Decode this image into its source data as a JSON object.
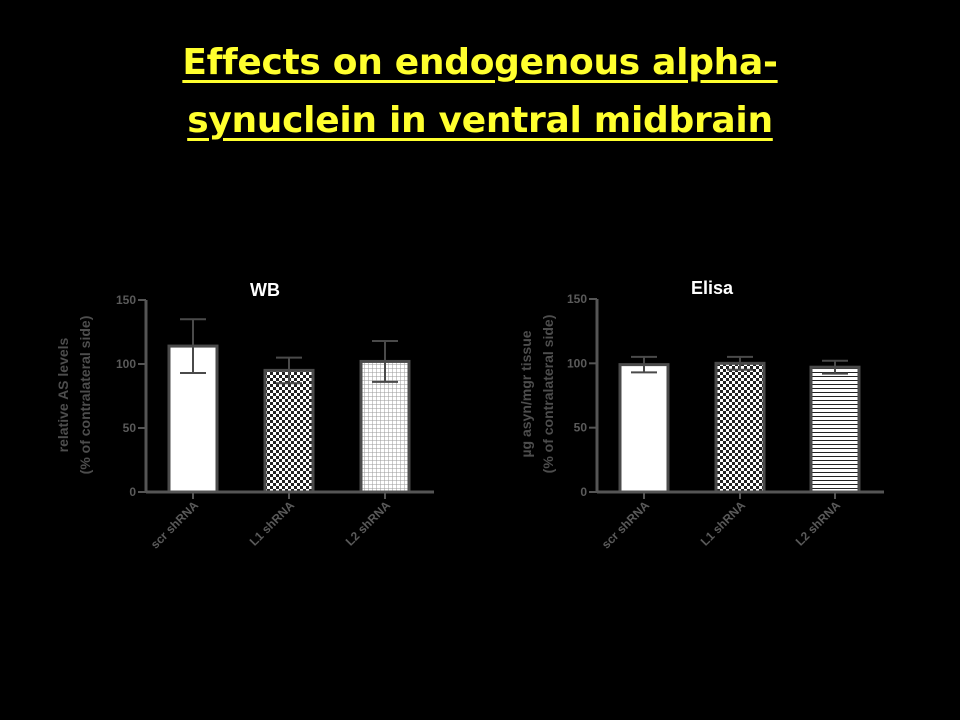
{
  "slide": {
    "title_line1": "Effects on endogenous alpha-",
    "title_line2": "synuclein in ventral midbrain",
    "title_color": "#ffff2e",
    "background": "#000000"
  },
  "chart_data": [
    {
      "type": "bar",
      "title": "WB",
      "ylabel_line1": "relative AS levels",
      "ylabel_line2": "(% of contralateral side)",
      "categories": [
        "scr shRNA",
        "L1 shRNA",
        "L2 shRNA"
      ],
      "values": [
        114,
        95,
        102
      ],
      "errors": [
        21,
        10,
        16
      ],
      "patterns": [
        "solid",
        "checker",
        "grid"
      ],
      "ylim": [
        0,
        150
      ],
      "yticks": [
        "0",
        "50",
        "100",
        "150"
      ],
      "axis_color": "#555555",
      "tick_label_color": "#5a5a5a"
    },
    {
      "type": "bar",
      "title": "Elisa",
      "ylabel_line1": "µg asyn/mgr tissue",
      "ylabel_line2": "(% of contralateral side)",
      "categories": [
        "scr shRNA",
        "L1 shRNA",
        "L2 shRNA"
      ],
      "values": [
        99,
        100,
        97
      ],
      "errors": [
        6,
        5,
        5
      ],
      "patterns": [
        "solid",
        "checker",
        "hlines"
      ],
      "ylim": [
        0,
        150
      ],
      "yticks": [
        "0",
        "50",
        "100",
        "150"
      ],
      "axis_color": "#555555",
      "tick_label_color": "#5a5a5a"
    }
  ]
}
